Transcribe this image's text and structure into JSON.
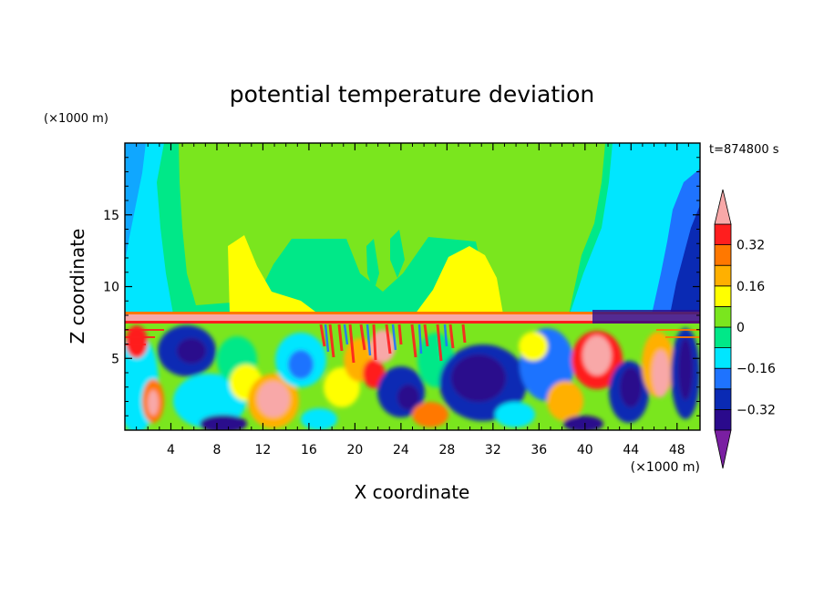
{
  "chart_data": {
    "type": "heatmap",
    "title": "potential temperature deviation",
    "xlabel": "X coordinate",
    "ylabel": "Z coordinate",
    "x_unit_label": "(×1000 m)",
    "y_unit_label": "(×1000 m)",
    "time_label": "t=874800 s",
    "xlim": [
      0,
      50
    ],
    "ylim": [
      0,
      20
    ],
    "x_ticks": [
      4,
      8,
      12,
      16,
      20,
      24,
      28,
      32,
      36,
      40,
      44,
      48
    ],
    "y_ticks": [
      5,
      10,
      15
    ],
    "colorbar": {
      "levels": [
        -0.4,
        -0.32,
        -0.24,
        -0.16,
        -0.08,
        0,
        0.08,
        0.16,
        0.24,
        0.32,
        0.4
      ],
      "colors": [
        "#7a1fa2",
        "#2a0a8c",
        "#0a2ab4",
        "#1e73ff",
        "#00e6ff",
        "#00e888",
        "#7ae61e",
        "#ffff00",
        "#ffb000",
        "#ff7800",
        "#ff1e1e",
        "#f8a8a8"
      ],
      "tick_labels": [
        "−0.32",
        "−0.16",
        "0",
        "0.16",
        "0.32"
      ],
      "tick_values": [
        -0.32,
        -0.16,
        0,
        0.16,
        0.32
      ],
      "extend": "both"
    }
  }
}
